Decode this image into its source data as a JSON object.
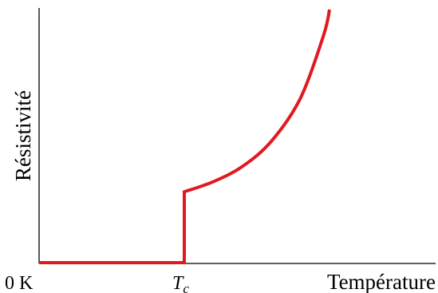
{
  "chart_data": {
    "type": "line",
    "title": "",
    "xlabel": "Température",
    "ylabel": "Résistivité",
    "x_ticks": [
      {
        "label": "0 K",
        "x": 0
      },
      {
        "label": "T",
        "subscript": "c",
        "x": 0.5
      }
    ],
    "xlim": [
      0,
      1
    ],
    "ylim": [
      0,
      1
    ],
    "grid": false,
    "legend": "none",
    "series": [
      {
        "color": "#e0191f",
        "x": [
          0.0,
          0.5,
          0.5,
          0.6,
          0.7,
          0.8,
          0.9,
          0.98,
          1.0
        ],
        "y": [
          0.0,
          0.0,
          0.28,
          0.32,
          0.38,
          0.48,
          0.65,
          0.9,
          1.0
        ]
      }
    ]
  }
}
